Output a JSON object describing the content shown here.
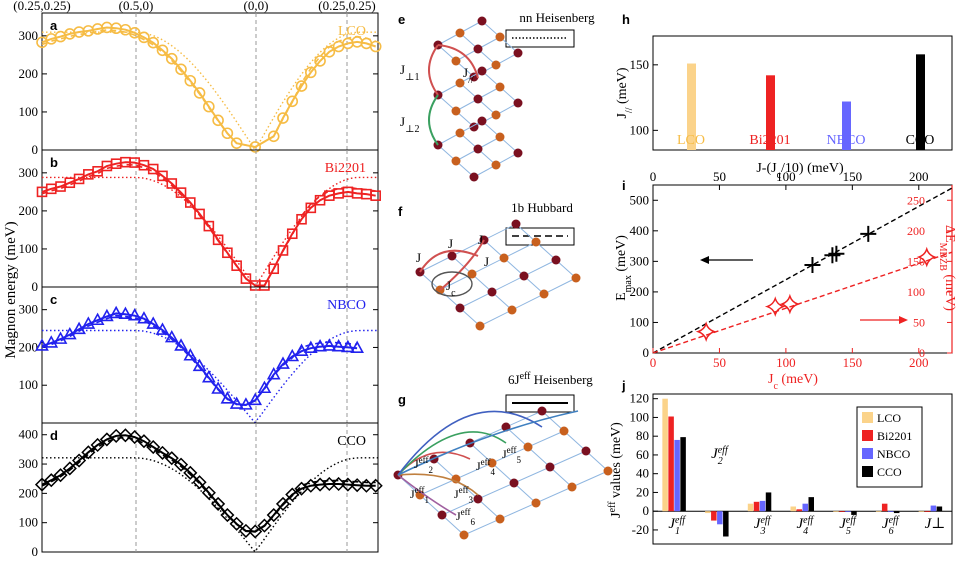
{
  "chart_data": [
    {
      "id": "magnon",
      "type": "line",
      "ylabel": "Magnon energy (meV)",
      "top_ticks": [
        "(0.25,0.25)",
        "(0.5,0)",
        "(0,0)",
        "(0.25,0.25)"
      ],
      "panels": [
        {
          "label": "a",
          "name": "LCO",
          "color": "#f6bc45",
          "ylim": [
            0,
            360
          ],
          "yticks": [
            "0",
            "100",
            "200",
            "300"
          ],
          "points": [
            [
              0,
              283
            ],
            [
              0.04,
              292
            ],
            [
              0.08,
              298
            ],
            [
              0.12,
              305
            ],
            [
              0.16,
              310
            ],
            [
              0.2,
              313
            ],
            [
              0.24,
              318
            ],
            [
              0.28,
              322
            ],
            [
              0.32,
              320
            ],
            [
              0.36,
              316
            ],
            [
              0.4,
              308
            ],
            [
              0.44,
              296
            ],
            [
              0.48,
              282
            ],
            [
              0.52,
              262
            ],
            [
              0.56,
              240
            ],
            [
              0.6,
              212
            ],
            [
              0.64,
              182
            ],
            [
              0.68,
              150
            ],
            [
              0.72,
              114
            ],
            [
              0.76,
              78
            ],
            [
              0.8,
              44
            ],
            [
              0.84,
              18
            ],
            [
              0.92,
              8
            ],
            [
              1.0,
              36
            ],
            [
              1.04,
              84
            ],
            [
              1.08,
              128
            ],
            [
              1.12,
              168
            ],
            [
              1.16,
              204
            ],
            [
              1.2,
              234
            ],
            [
              1.24,
              258
            ],
            [
              1.28,
              272
            ],
            [
              1.32,
              280
            ],
            [
              1.36,
              284
            ],
            [
              1.4,
              280
            ],
            [
              1.44,
              272
            ]
          ]
        },
        {
          "label": "b",
          "name": "Bi2201",
          "color": "#ee2222",
          "ylim": [
            0,
            360
          ],
          "yticks": [
            "0",
            "100",
            "200",
            "300"
          ],
          "points": [
            [
              0,
              250
            ],
            [
              0.04,
              258
            ],
            [
              0.08,
              264
            ],
            [
              0.12,
              274
            ],
            [
              0.16,
              284
            ],
            [
              0.2,
              296
            ],
            [
              0.24,
              304
            ],
            [
              0.28,
              318
            ],
            [
              0.32,
              324
            ],
            [
              0.36,
              328
            ],
            [
              0.4,
              327
            ],
            [
              0.44,
              320
            ],
            [
              0.48,
              310
            ],
            [
              0.52,
              292
            ],
            [
              0.56,
              272
            ],
            [
              0.6,
              248
            ],
            [
              0.64,
              222
            ],
            [
              0.68,
              192
            ],
            [
              0.72,
              160
            ],
            [
              0.76,
              124
            ],
            [
              0.8,
              90
            ],
            [
              0.84,
              56
            ],
            [
              0.88,
              22
            ],
            [
              0.92,
              4
            ],
            [
              0.96,
              4
            ],
            [
              1.0,
              48
            ],
            [
              1.04,
              96
            ],
            [
              1.08,
              140
            ],
            [
              1.12,
              178
            ],
            [
              1.16,
              208
            ],
            [
              1.2,
              228
            ],
            [
              1.24,
              240
            ],
            [
              1.28,
              246
            ],
            [
              1.32,
              250
            ],
            [
              1.36,
              246
            ],
            [
              1.4,
              244
            ],
            [
              1.44,
              240
            ]
          ]
        },
        {
          "label": "c",
          "name": "NBCO",
          "color": "#2222ee",
          "ylim": [
            0,
            360
          ],
          "yticks": [
            "100",
            "200",
            "300"
          ],
          "points": [
            [
              0,
              204
            ],
            [
              0.04,
              212
            ],
            [
              0.08,
              222
            ],
            [
              0.12,
              234
            ],
            [
              0.16,
              248
            ],
            [
              0.2,
              262
            ],
            [
              0.24,
              272
            ],
            [
              0.28,
              282
            ],
            [
              0.32,
              290
            ],
            [
              0.36,
              288
            ],
            [
              0.4,
              284
            ],
            [
              0.44,
              276
            ],
            [
              0.48,
              262
            ],
            [
              0.52,
              246
            ],
            [
              0.56,
              226
            ],
            [
              0.6,
              204
            ],
            [
              0.64,
              178
            ],
            [
              0.68,
              150
            ],
            [
              0.72,
              120
            ],
            [
              0.76,
              90
            ],
            [
              0.8,
              64
            ],
            [
              0.84,
              50
            ],
            [
              0.88,
              48
            ],
            [
              0.92,
              60
            ],
            [
              0.96,
              92
            ],
            [
              1.0,
              128
            ],
            [
              1.04,
              156
            ],
            [
              1.08,
              176
            ],
            [
              1.12,
              190
            ],
            [
              1.16,
              198
            ],
            [
              1.2,
              202
            ],
            [
              1.24,
              204
            ],
            [
              1.28,
              202
            ],
            [
              1.32,
              200
            ],
            [
              1.36,
              198
            ]
          ]
        },
        {
          "label": "d",
          "name": "CCO",
          "color": "#000000",
          "ylim": [
            0,
            440
          ],
          "yticks": [
            "0",
            "100",
            "200",
            "300",
            "400"
          ],
          "points": [
            [
              0,
              230
            ],
            [
              0.04,
              245
            ],
            [
              0.08,
              262
            ],
            [
              0.12,
              285
            ],
            [
              0.16,
              312
            ],
            [
              0.2,
              340
            ],
            [
              0.24,
              365
            ],
            [
              0.28,
              384
            ],
            [
              0.32,
              396
            ],
            [
              0.36,
              398
            ],
            [
              0.4,
              392
            ],
            [
              0.44,
              378
            ],
            [
              0.48,
              358
            ],
            [
              0.52,
              338
            ],
            [
              0.56,
              320
            ],
            [
              0.6,
              298
            ],
            [
              0.64,
              270
            ],
            [
              0.68,
              238
            ],
            [
              0.72,
              202
            ],
            [
              0.76,
              164
            ],
            [
              0.8,
              126
            ],
            [
              0.84,
              96
            ],
            [
              0.88,
              72
            ],
            [
              0.92,
              70
            ],
            [
              0.96,
              90
            ],
            [
              1.0,
              126
            ],
            [
              1.04,
              164
            ],
            [
              1.08,
              196
            ],
            [
              1.12,
              216
            ],
            [
              1.16,
              226
            ],
            [
              1.2,
              230
            ],
            [
              1.24,
              232
            ],
            [
              1.28,
              232
            ],
            [
              1.32,
              230
            ],
            [
              1.36,
              228
            ],
            [
              1.4,
              226
            ],
            [
              1.44,
              226
            ]
          ]
        }
      ]
    },
    {
      "id": "h",
      "type": "bar",
      "label": "h",
      "categories": [
        "LCO",
        "Bi2201",
        "NBCO",
        "CCO"
      ],
      "values": [
        151,
        142,
        122,
        158
      ],
      "colors": [
        "#fbd38a",
        "#ee2222",
        "#6666ff",
        "#000000"
      ],
      "ylim": [
        85,
        172
      ],
      "yticks": [
        "100",
        "150"
      ],
      "ylabel": "J// (meV)"
    },
    {
      "id": "i",
      "type": "scatter",
      "label": "i",
      "xlabel_top": "J-(Jc/10) (meV)",
      "xlabel": "Jc (meV)",
      "ylabel_left": "Emax (meV)",
      "ylabel_right": "ΔEMBZB (meV)",
      "xlim": [
        0,
        225
      ],
      "ylim_left": [
        0,
        550
      ],
      "ylim_right": [
        0,
        275
      ],
      "xticks": [
        "0",
        "50",
        "100",
        "150",
        "200"
      ],
      "top_xticks": [
        "0",
        "50",
        "100",
        "150",
        "200"
      ],
      "yticks_left": [
        "0",
        "100",
        "200",
        "300",
        "400",
        "500"
      ],
      "yticks_right": [
        "0",
        "50",
        "100",
        "150",
        "200",
        "250"
      ],
      "series": [
        {
          "points": [
            [
              120,
              288
            ],
            [
              135,
              320
            ],
            [
              138,
              325
            ],
            [
              162,
              390
            ]
          ],
          "color": "#000000",
          "marker": "+"
        },
        {
          "points": [
            [
              40,
              35
            ],
            [
              92,
              76
            ],
            [
              103,
              80
            ],
            [
              206,
              157
            ]
          ],
          "color": "#ee2222",
          "marker": "diamond"
        }
      ]
    },
    {
      "id": "j",
      "type": "bar",
      "label": "j",
      "ylabel": "Jeff values (meV)",
      "ylim": [
        -35,
        125
      ],
      "yticks": [
        "-20",
        "0",
        "20",
        "40",
        "60",
        "80",
        "100",
        "120"
      ],
      "categories": [
        "J1eff",
        "J2eff",
        "J3eff",
        "J4eff",
        "J5eff",
        "J6eff",
        "J⊥"
      ],
      "series": [
        {
          "name": "LCO",
          "color": "#fbd38a",
          "values": [
            120,
            -2,
            8,
            5,
            0,
            0,
            0
          ]
        },
        {
          "name": "Bi2201",
          "color": "#ee2222",
          "values": [
            101,
            -10,
            10,
            2,
            0,
            8,
            0
          ]
        },
        {
          "name": "NBCO",
          "color": "#6666ff",
          "values": [
            76,
            -14,
            11,
            8,
            0,
            0,
            6
          ]
        },
        {
          "name": "CCO",
          "color": "#000000",
          "values": [
            79,
            -27,
            20,
            15,
            -4,
            -2,
            5
          ]
        }
      ]
    },
    {
      "id": "diagrams",
      "type": "diagram",
      "e": {
        "label": "e",
        "title": "nn Heisenberg",
        "labels": [
          "J⊥1",
          "J//",
          "J⊥2"
        ]
      },
      "f": {
        "label": "f",
        "title": "1b Hubbard",
        "labels": [
          "J",
          "J",
          "J",
          "J",
          "Jc"
        ]
      },
      "g": {
        "label": "g",
        "title": "6Jeff Heisenberg",
        "labels": [
          "J1eff",
          "J2eff",
          "J3eff",
          "J4eff",
          "J5eff",
          "J6eff"
        ]
      }
    }
  ]
}
